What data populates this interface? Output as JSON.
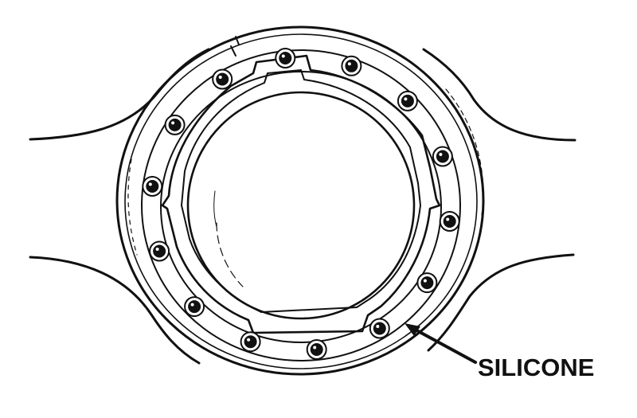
{
  "diagram": {
    "callout_label": "SILICONE",
    "bolt_count": 14,
    "colors": {
      "ink": "#111111",
      "paper": "#ffffff"
    }
  }
}
